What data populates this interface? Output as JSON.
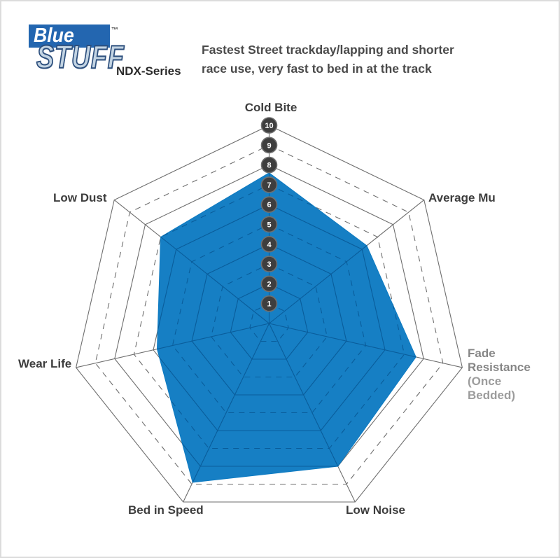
{
  "logo": {
    "brand_top": "Blue",
    "trademark": "™",
    "brand_bottom": "STUFF",
    "series": "NDX-Series"
  },
  "subtitle": "Fastest Street trackday/lapping and shorter race use, very fast to bed in at the track",
  "chart_data": {
    "type": "radar",
    "title": "EBC BlueStuff NDX-Series performance ratings",
    "axes": [
      {
        "label": "Cold Bite"
      },
      {
        "label": "Average Mu"
      },
      {
        "label": "Fade Resistance",
        "sublabel": "(Once Bedded)"
      },
      {
        "label": "Low Noise"
      },
      {
        "label": "Bed in Speed"
      },
      {
        "label": "Wear Life"
      },
      {
        "label": "Low Dust"
      }
    ],
    "values": [
      7.6,
      6.3,
      7.6,
      8.0,
      8.9,
      5.8,
      7.0
    ],
    "scale": {
      "min": 0,
      "max": 10,
      "ticks": [
        "1",
        "2",
        "3",
        "4",
        "5",
        "6",
        "7",
        "8",
        "9",
        "10"
      ]
    },
    "rings": {
      "solid": [
        2,
        4,
        6,
        8,
        10
      ],
      "dashed": [
        1,
        3,
        5,
        7,
        9
      ]
    },
    "legend": "none",
    "grid": "heptagonal web, dashed odd rings, solid even rings, numbered ticks on vertical axis",
    "colors": {
      "fill": "#0e7bc2",
      "grid": "#6e6e6e",
      "grid_inside_fill": "#0a5d9b",
      "tick_circle": "#3e3e3e",
      "tick_circle_edge": "#6f6f6f",
      "tick_text": "#ffffff"
    }
  }
}
